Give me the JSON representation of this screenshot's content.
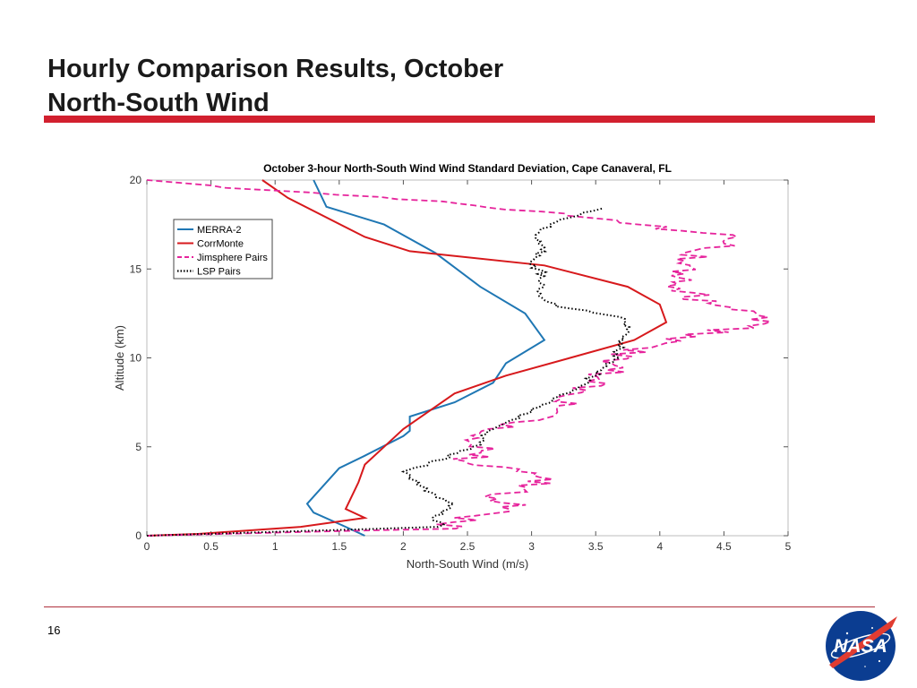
{
  "slide": {
    "title_line1": "Hourly Comparison Results, October",
    "title_line2": "North-South Wind",
    "page_number": "16",
    "logo_text": "NASA"
  },
  "colors": {
    "title_rule": "#d2202f",
    "merra": "#1f77b4",
    "corrmonte": "#d7191c",
    "jimsphere": "#e6249c",
    "lsp": "#000000"
  },
  "chart_data": {
    "type": "line",
    "title": "October 3-hour North-South Wind Wind Standard Deviation, Cape Canaveral, FL",
    "xlabel": "North-South Wind (m/s)",
    "ylabel": "Altitude (km)",
    "xlim": [
      0,
      5
    ],
    "ylim": [
      0,
      20
    ],
    "xticks": [
      "0",
      "0.5",
      "1",
      "1.5",
      "2",
      "2.5",
      "3",
      "3.5",
      "4",
      "4.5",
      "5"
    ],
    "yticks": [
      "0",
      "5",
      "10",
      "15",
      "20"
    ],
    "grid": false,
    "legend_position": "top-left",
    "series": [
      {
        "name": "MERRA-2",
        "style": "solid",
        "color": "#1f77b4",
        "x": [
          1.7,
          1.55,
          1.3,
          1.25,
          1.3,
          1.5,
          1.7,
          2.0,
          2.05,
          2.05,
          2.4,
          2.7,
          2.8,
          3.1,
          2.95,
          2.6,
          2.25,
          1.85,
          1.4,
          1.3
        ],
        "y": [
          0,
          0.5,
          1.3,
          1.8,
          2.2,
          3.8,
          4.5,
          5.6,
          5.9,
          6.7,
          7.5,
          8.6,
          9.7,
          11.0,
          12.5,
          14.0,
          15.9,
          17.5,
          18.5,
          20
        ]
      },
      {
        "name": "CorrMonte",
        "style": "solid",
        "color": "#d7191c",
        "x": [
          0.0,
          0.4,
          1.2,
          1.7,
          1.55,
          1.65,
          1.7,
          1.85,
          2.0,
          2.4,
          2.8,
          3.3,
          3.8,
          4.05,
          4.0,
          3.75,
          3.1,
          2.05,
          1.7,
          1.1,
          0.9
        ],
        "y": [
          0,
          0.1,
          0.5,
          1.0,
          1.5,
          3.0,
          4.0,
          5.0,
          6.0,
          8.0,
          9.0,
          10.0,
          11.0,
          12.0,
          13.0,
          14.0,
          15.2,
          16.0,
          16.8,
          19.0,
          20
        ]
      }
    ],
    "series_noisy": [
      {
        "name": "Jimsphere Pairs",
        "style": "dashed",
        "color": "#e6249c",
        "x": [
          0.0,
          2.3,
          2.5,
          2.9,
          2.7,
          3.0,
          3.1,
          2.5,
          2.6,
          2.5,
          3.0,
          3.2,
          3.4,
          3.6,
          3.7,
          4.2,
          4.7,
          4.9,
          4.3,
          4.1,
          4.3,
          4.6,
          3.7,
          3.3,
          2.2,
          1.2,
          0.5,
          0.0
        ],
        "y": [
          0,
          0.4,
          1.0,
          1.5,
          2.2,
          2.6,
          3.4,
          4.2,
          4.9,
          5.5,
          6.5,
          7.3,
          8.3,
          9.2,
          10.2,
          11.2,
          11.8,
          12.4,
          13.3,
          14.5,
          15.8,
          16.8,
          17.6,
          18.0,
          18.8,
          19.3,
          19.7,
          20.0
        ]
      },
      {
        "name": "LSP Pairs",
        "style": "dotted",
        "color": "#000000",
        "x": [
          0.0,
          2.3,
          2.25,
          2.4,
          2.2,
          2.15,
          2.1,
          2.0,
          2.3,
          2.55,
          2.7,
          3.0,
          3.4,
          3.65,
          3.75,
          3.7,
          3.2,
          3.05,
          3.1,
          3.0,
          3.1,
          3.0,
          3.15,
          3.3,
          3.55
        ],
        "y": [
          0,
          0.5,
          1.0,
          1.8,
          2.4,
          2.8,
          3.1,
          3.6,
          4.3,
          5.0,
          6.0,
          7.0,
          8.5,
          10.0,
          11.5,
          12.3,
          12.9,
          13.5,
          14.6,
          15.4,
          16.1,
          16.9,
          17.5,
          17.9,
          18.4
        ]
      }
    ]
  }
}
